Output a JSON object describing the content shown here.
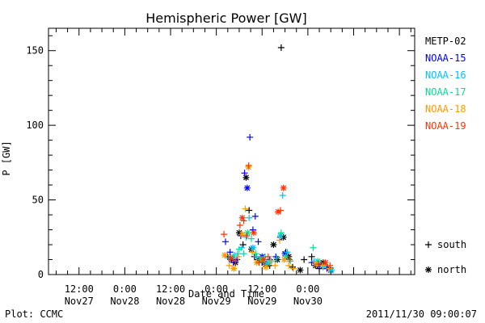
{
  "chart_data": {
    "type": "scatter",
    "title": "Hemispheric Power [GW]",
    "xlabel": "Date and Time",
    "ylabel": "P [GW]",
    "ylim": [
      0,
      165
    ],
    "yticks": [
      0,
      50,
      100,
      150
    ],
    "xlim_hours": [
      -20,
      76
    ],
    "xticks": [
      {
        "h": -12,
        "line1": "12:00",
        "line2": "Nov27"
      },
      {
        "h": 0,
        "line1": "0:00",
        "line2": "Nov28"
      },
      {
        "h": 12,
        "line1": "12:00",
        "line2": "Nov28"
      },
      {
        "h": 24,
        "line1": "0:00",
        "line2": "Nov29"
      },
      {
        "h": 36,
        "line1": "12:00",
        "line2": "Nov29"
      },
      {
        "h": 48,
        "line1": "0:00",
        "line2": "Nov30"
      }
    ],
    "legend_position": "right",
    "series": [
      {
        "name": "METP-02",
        "color": "#000000",
        "points": [
          [
            27,
            12,
            "s"
          ],
          [
            28,
            10,
            "n"
          ],
          [
            29,
            8,
            "n"
          ],
          [
            30,
            28,
            "n"
          ],
          [
            31,
            20,
            "s"
          ],
          [
            31.8,
            65,
            "n"
          ],
          [
            32.6,
            43,
            "s"
          ],
          [
            33.2,
            17,
            "n"
          ],
          [
            34,
            12,
            "s"
          ],
          [
            35,
            10,
            "n"
          ],
          [
            36,
            8,
            "s"
          ],
          [
            37,
            7,
            "n"
          ],
          [
            38,
            6,
            "s"
          ],
          [
            39,
            20,
            "n"
          ],
          [
            40,
            10,
            "n"
          ],
          [
            41,
            152,
            "s"
          ],
          [
            41.6,
            25,
            "n"
          ],
          [
            42.2,
            15,
            "s"
          ],
          [
            43,
            12,
            "n"
          ],
          [
            44,
            5,
            "s"
          ],
          [
            46,
            3,
            "n"
          ],
          [
            47,
            10,
            "s"
          ],
          [
            49,
            12,
            "s"
          ],
          [
            50,
            6,
            "n"
          ],
          [
            51,
            4,
            "s"
          ],
          [
            52,
            8,
            "n"
          ],
          [
            53,
            5,
            "s"
          ],
          [
            54,
            3,
            "n"
          ]
        ]
      },
      {
        "name": "NOAA-15",
        "color": "#0000ff",
        "points": [
          [
            26.4,
            22,
            "s"
          ],
          [
            27.6,
            15,
            "s"
          ],
          [
            28.5,
            8,
            "s"
          ],
          [
            29.4,
            10,
            "s"
          ],
          [
            30.4,
            26,
            "s"
          ],
          [
            31.4,
            68,
            "s"
          ],
          [
            32.1,
            58,
            "n"
          ],
          [
            32.8,
            92,
            "s"
          ],
          [
            33.6,
            30,
            "s"
          ],
          [
            34.2,
            39,
            "s"
          ],
          [
            35,
            22,
            "s"
          ],
          [
            36,
            12,
            "n"
          ],
          [
            38,
            10,
            "s"
          ],
          [
            39.6,
            12,
            "s"
          ],
          [
            40.8,
            25,
            "s"
          ],
          [
            42,
            14,
            "n"
          ],
          [
            49,
            8,
            "s"
          ],
          [
            51,
            6,
            "n"
          ],
          [
            53,
            4,
            "s"
          ]
        ]
      },
      {
        "name": "NOAA-16",
        "color": "#00c0ff",
        "points": [
          [
            27.2,
            11,
            "s"
          ],
          [
            28.4,
            12,
            "s"
          ],
          [
            29.6,
            14,
            "s"
          ],
          [
            30.6,
            18,
            "s"
          ],
          [
            31.8,
            25,
            "s"
          ],
          [
            32.6,
            38,
            "s"
          ],
          [
            33.6,
            18,
            "n"
          ],
          [
            34.6,
            12,
            "s"
          ],
          [
            36,
            10,
            "s"
          ],
          [
            37.2,
            8,
            "n"
          ],
          [
            38.4,
            9,
            "s"
          ],
          [
            40.8,
            26,
            "n"
          ],
          [
            41.4,
            53,
            "s"
          ],
          [
            42.6,
            15,
            "s"
          ],
          [
            49.6,
            9,
            "s"
          ],
          [
            52,
            5,
            "s"
          ],
          [
            54.2,
            3,
            "n"
          ]
        ]
      },
      {
        "name": "NOAA-17",
        "color": "#00e090",
        "points": [
          [
            28.8,
            13,
            "s"
          ],
          [
            30,
            17,
            "s"
          ],
          [
            31.2,
            14,
            "s"
          ],
          [
            32.2,
            28,
            "n"
          ],
          [
            33.2,
            24,
            "s"
          ],
          [
            34.4,
            14,
            "s"
          ],
          [
            35.6,
            10,
            "n"
          ],
          [
            36.8,
            12,
            "s"
          ],
          [
            38,
            8,
            "s"
          ],
          [
            39.8,
            11,
            "s"
          ],
          [
            41,
            28,
            "s"
          ],
          [
            42.2,
            12,
            "n"
          ],
          [
            43.4,
            9,
            "s"
          ],
          [
            49.4,
            18,
            "s"
          ],
          [
            50.6,
            9,
            "n"
          ],
          [
            52.4,
            7,
            "s"
          ]
        ]
      },
      {
        "name": "NOAA-18",
        "color": "#ff9900",
        "points": [
          [
            26.2,
            13,
            "n"
          ],
          [
            27.4,
            6,
            "s"
          ],
          [
            28.6,
            4,
            "n"
          ],
          [
            29.8,
            12,
            "s"
          ],
          [
            30.8,
            27,
            "n"
          ],
          [
            31.6,
            44,
            "s"
          ],
          [
            32.4,
            72,
            "n"
          ],
          [
            33.4,
            15,
            "s"
          ],
          [
            34.6,
            8,
            "n"
          ],
          [
            35.8,
            10,
            "s"
          ],
          [
            37,
            5,
            "n"
          ],
          [
            38.2,
            9,
            "s"
          ],
          [
            39.4,
            6,
            "s"
          ],
          [
            40.6,
            23,
            "s"
          ],
          [
            41.8,
            10,
            "n"
          ],
          [
            43,
            6,
            "s"
          ],
          [
            44.2,
            4,
            "s"
          ],
          [
            50.2,
            7,
            "n"
          ],
          [
            51.8,
            6,
            "s"
          ],
          [
            53.6,
            4,
            "s"
          ]
        ]
      },
      {
        "name": "NOAA-19",
        "color": "#ff3300",
        "points": [
          [
            26,
            27,
            "s"
          ],
          [
            27.8,
            11,
            "n"
          ],
          [
            29,
            9,
            "s"
          ],
          [
            30.2,
            33,
            "s"
          ],
          [
            30.8,
            38,
            "n"
          ],
          [
            31.2,
            36,
            "s"
          ],
          [
            32,
            26,
            "s"
          ],
          [
            32.5,
            73,
            "s"
          ],
          [
            33.8,
            28,
            "n"
          ],
          [
            35.2,
            8,
            "s"
          ],
          [
            36.4,
            10,
            "n"
          ],
          [
            37.6,
            12,
            "s"
          ],
          [
            40.2,
            42,
            "n"
          ],
          [
            40.8,
            43,
            "s"
          ],
          [
            41.6,
            58,
            "n"
          ],
          [
            43.2,
            10,
            "s"
          ],
          [
            50.8,
            7,
            "s"
          ],
          [
            52.6,
            8,
            "n"
          ],
          [
            53.8,
            6,
            "s"
          ]
        ]
      }
    ],
    "symbol_legend": [
      {
        "symbol": "+",
        "label": "south"
      },
      {
        "symbol": "*",
        "label": "north"
      }
    ]
  },
  "footer": {
    "left": "Plot: CCMC",
    "right": "2011/11/30 09:00:07"
  }
}
